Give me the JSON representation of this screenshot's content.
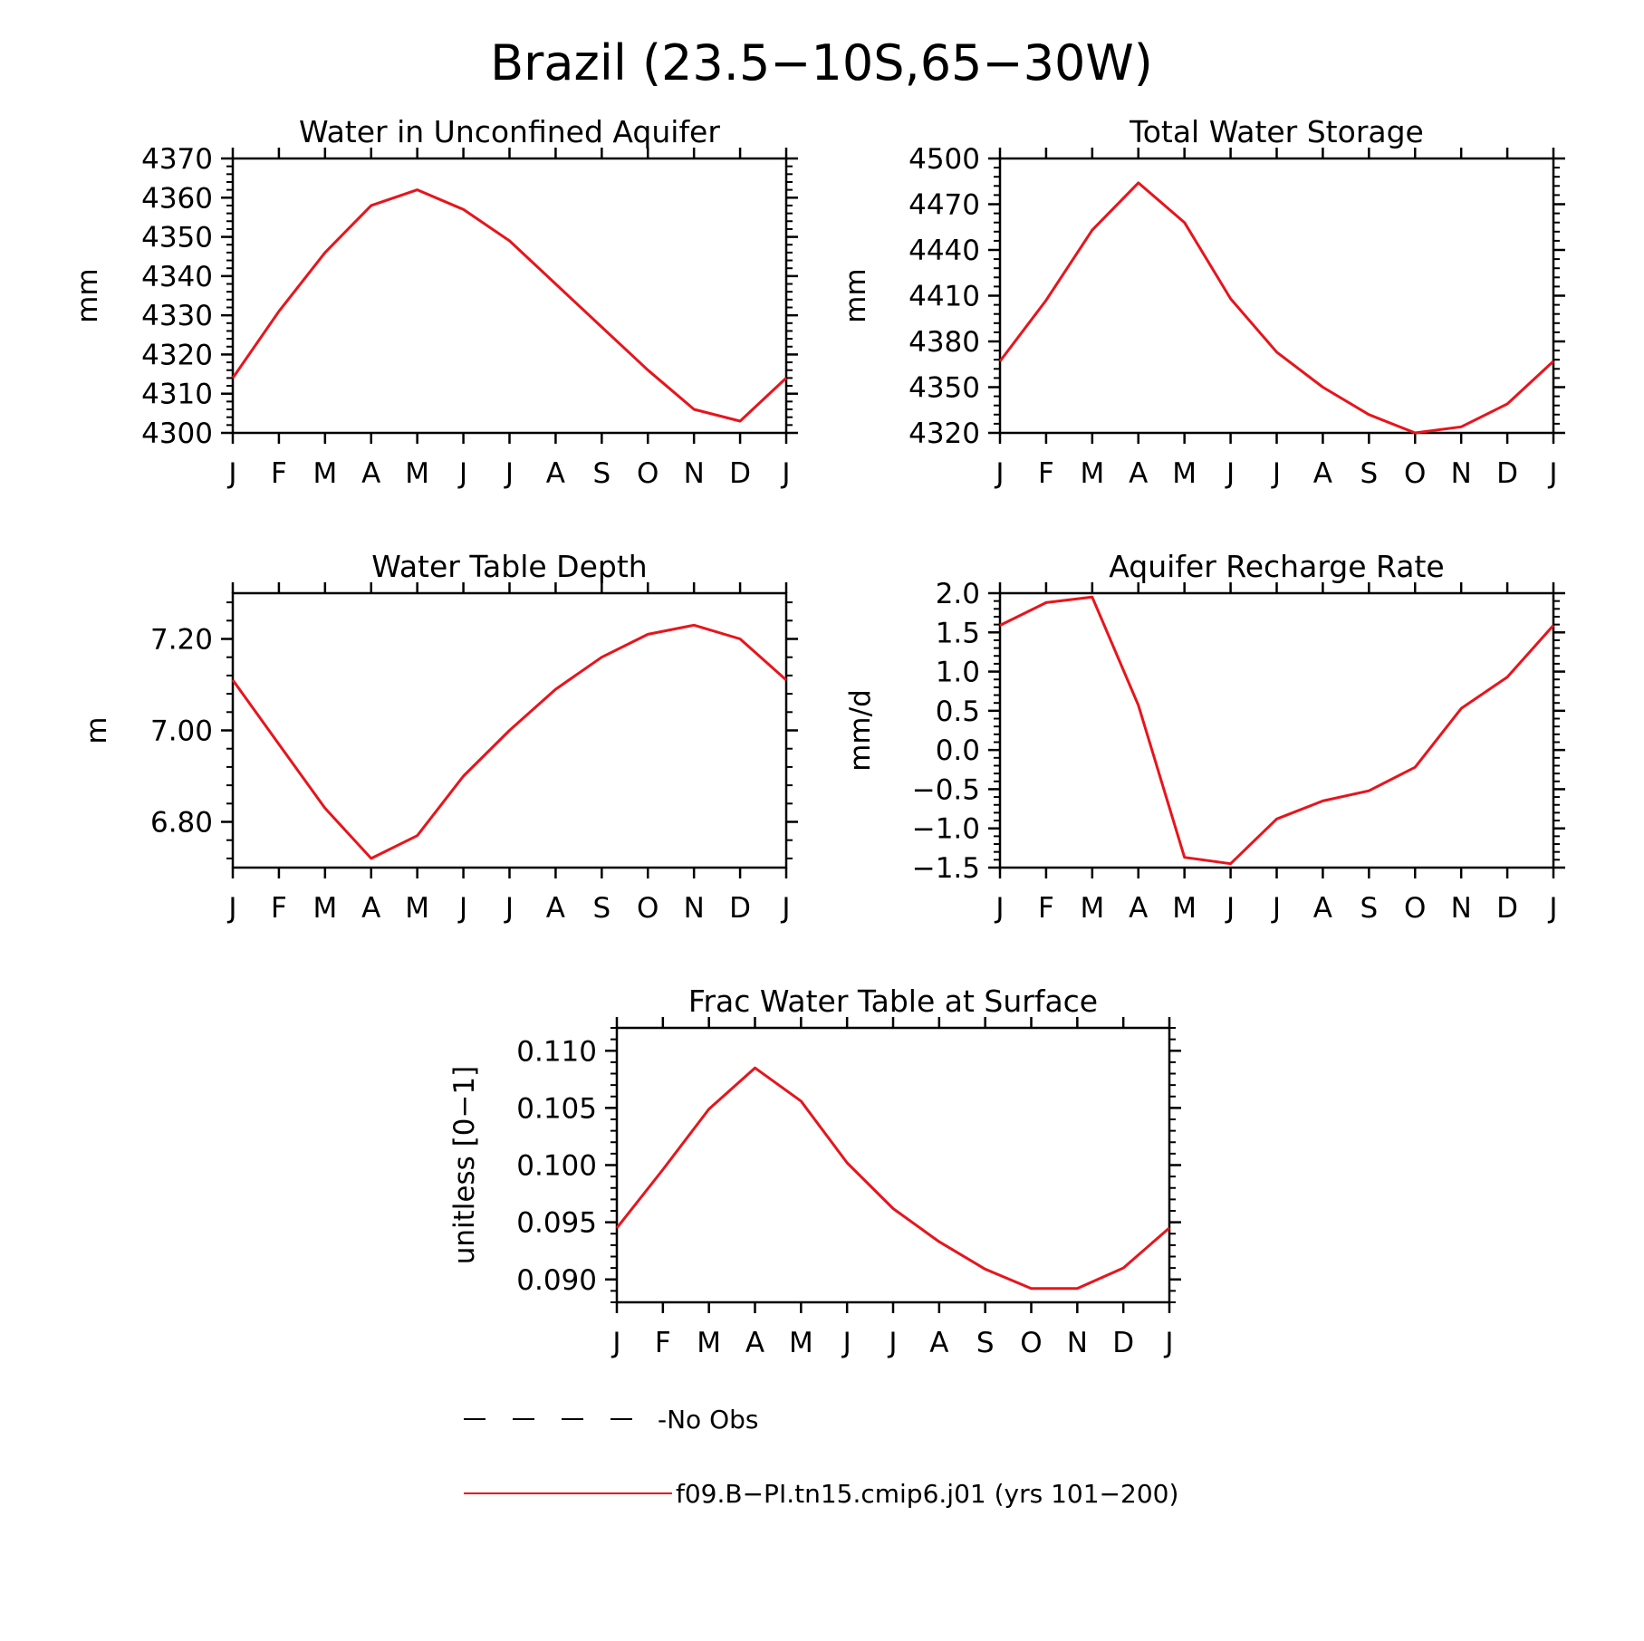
{
  "figure": {
    "title": "Brazil (23.5−10S,65−30W)"
  },
  "colors": {
    "series": "#e8141c",
    "axes": "#000000",
    "background": "#ffffff"
  },
  "legend": {
    "placement": "bottom-center",
    "entries": [
      {
        "label": "-No Obs",
        "style": "dashed",
        "color": "#000000"
      },
      {
        "label": "f09.B−PI.tn15.cmip6.j01 (yrs 101−200)",
        "style": "solid",
        "color": "#e8141c"
      }
    ]
  },
  "chart_data": [
    {
      "type": "line",
      "title": "Water in Unconfined Aquifer",
      "ylabel": "mm",
      "xlabel": "",
      "categories": [
        "J",
        "F",
        "M",
        "A",
        "M",
        "J",
        "J",
        "A",
        "S",
        "O",
        "N",
        "D",
        "J"
      ],
      "ylim": [
        4300,
        4370
      ],
      "yticks": [
        4300,
        4310,
        4320,
        4330,
        4340,
        4350,
        4360,
        4370
      ],
      "ytick_labels": [
        "4300",
        "4310",
        "4320",
        "4330",
        "4340",
        "4350",
        "4360",
        "4370"
      ],
      "grid": false,
      "series": [
        {
          "name": "f09.B−PI.tn15.cmip6.j01 (yrs 101−200)",
          "values": [
            4314,
            4331,
            4346,
            4358,
            4362,
            4357,
            4349,
            4338,
            4327,
            4316,
            4306,
            4303,
            4314
          ]
        }
      ]
    },
    {
      "type": "line",
      "title": "Total Water Storage",
      "ylabel": "mm",
      "xlabel": "",
      "categories": [
        "J",
        "F",
        "M",
        "A",
        "M",
        "J",
        "J",
        "A",
        "S",
        "O",
        "N",
        "D",
        "J"
      ],
      "ylim": [
        4320,
        4500
      ],
      "yticks": [
        4320,
        4350,
        4380,
        4410,
        4440,
        4470,
        4500
      ],
      "ytick_labels": [
        "4320",
        "4350",
        "4380",
        "4410",
        "4440",
        "4470",
        "4500"
      ],
      "grid": false,
      "series": [
        {
          "name": "f09.B−PI.tn15.cmip6.j01 (yrs 101−200)",
          "values": [
            4367,
            4407,
            4453,
            4484,
            4458,
            4408,
            4373,
            4350,
            4332,
            4320,
            4324,
            4339,
            4367
          ]
        }
      ]
    },
    {
      "type": "line",
      "title": "Water Table Depth",
      "ylabel": "m",
      "xlabel": "",
      "categories": [
        "J",
        "F",
        "M",
        "A",
        "M",
        "J",
        "J",
        "A",
        "S",
        "O",
        "N",
        "D",
        "J"
      ],
      "ylim": [
        6.7,
        7.3
      ],
      "yticks": [
        6.8,
        7.0,
        7.2
      ],
      "ytick_labels": [
        "6.80",
        "7.00",
        "7.20"
      ],
      "grid": false,
      "series": [
        {
          "name": "f09.B−PI.tn15.cmip6.j01 (yrs 101−200)",
          "values": [
            7.11,
            6.97,
            6.83,
            6.72,
            6.77,
            6.9,
            7.0,
            7.09,
            7.16,
            7.21,
            7.23,
            7.2,
            7.11
          ]
        }
      ]
    },
    {
      "type": "line",
      "title": "Aquifer Recharge Rate",
      "ylabel": "mm/d",
      "xlabel": "",
      "categories": [
        "J",
        "F",
        "M",
        "A",
        "M",
        "J",
        "J",
        "A",
        "S",
        "O",
        "N",
        "D",
        "J"
      ],
      "ylim": [
        -1.5,
        2.0
      ],
      "yticks": [
        -1.5,
        -1.0,
        -0.5,
        0.0,
        0.5,
        1.0,
        1.5,
        2.0
      ],
      "ytick_labels": [
        "−1.5",
        "−1.0",
        "−0.5",
        "0.0",
        "0.5",
        "1.0",
        "1.5",
        "2.0"
      ],
      "grid": false,
      "series": [
        {
          "name": "f09.B−PI.tn15.cmip6.j01 (yrs 101−200)",
          "values": [
            1.59,
            1.88,
            1.95,
            0.57,
            -1.37,
            -1.45,
            -0.88,
            -0.65,
            -0.52,
            -0.22,
            0.53,
            0.93,
            1.59
          ]
        }
      ]
    },
    {
      "type": "line",
      "title": "Frac Water Table at Surface",
      "ylabel": "unitless [0−1]",
      "xlabel": "",
      "categories": [
        "J",
        "F",
        "M",
        "A",
        "M",
        "J",
        "J",
        "A",
        "S",
        "O",
        "N",
        "D",
        "J"
      ],
      "ylim": [
        0.088,
        0.112
      ],
      "yticks": [
        0.09,
        0.095,
        0.1,
        0.105,
        0.11
      ],
      "ytick_labels": [
        "0.090",
        "0.095",
        "0.100",
        "0.105",
        "0.110"
      ],
      "grid": false,
      "series": [
        {
          "name": "f09.B−PI.tn15.cmip6.j01 (yrs 101−200)",
          "values": [
            0.0945,
            0.0996,
            0.1049,
            0.1085,
            0.1056,
            0.1002,
            0.0962,
            0.0933,
            0.0909,
            0.0892,
            0.0892,
            0.091,
            0.0945
          ]
        }
      ]
    }
  ]
}
